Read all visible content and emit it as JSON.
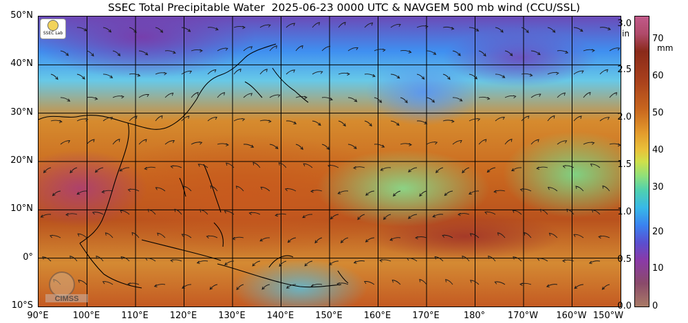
{
  "title": "SSEC Total Precipitable Water  2025-06-23 0000 UTC & NAVGEM 500 mb wind (CCU/SSL)",
  "lat_labels": [
    "50°N",
    "40°N",
    "30°N",
    "20°N",
    "10°N",
    "0°",
    "10°S"
  ],
  "lon_labels": [
    "90°E",
    "100°E",
    "110°E",
    "120°E",
    "130°E",
    "140°E",
    "150°E",
    "160°E",
    "170°E",
    "180°",
    "170°W",
    "160°W",
    "150°W"
  ],
  "colorbar": {
    "inch_labels": [
      "3.0",
      "2.5",
      "2.0",
      "1.5",
      "1.0",
      "0.5",
      "0.0"
    ],
    "inch_unit": "in",
    "mm_labels": [
      "70",
      "60",
      "50",
      "40",
      "30",
      "20",
      "10",
      "0"
    ],
    "mm_unit": "mm"
  },
  "logos": {
    "ssec_logo": "SSEC Lab",
    "cimss_logo": "CIMSS"
  },
  "map": {
    "extent": {
      "lon_min": 90,
      "lon_max": 210,
      "lat_min": -10,
      "lat_max": 50
    },
    "grid_lines_lon": [
      100,
      110,
      120,
      130,
      140,
      150,
      160,
      170,
      180,
      190,
      200
    ],
    "grid_lines_lat": [
      40,
      30,
      20,
      10,
      0
    ]
  }
}
